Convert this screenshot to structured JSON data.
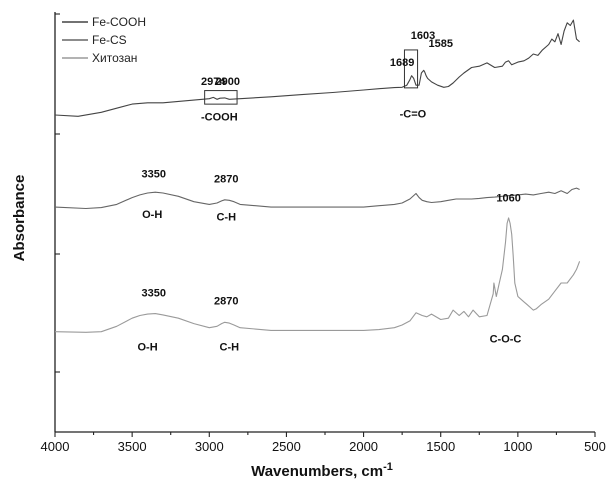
{
  "chart_data": {
    "type": "line",
    "xlabel": "Wavenumbers, cm",
    "xlabel_superscript": "-1",
    "ylabel": "Absorbance",
    "xlim": [
      4000,
      500
    ],
    "xticks": [
      "4000",
      "3500",
      "3000",
      "2500",
      "2000",
      "1500",
      "1000",
      "500"
    ],
    "yticks_labeled": false,
    "legend": "top-left",
    "grid": false,
    "series": [
      {
        "name": "Fe-COOH",
        "color": "#444444",
        "x": [
          4000,
          3850,
          3700,
          3600,
          3500,
          3400,
          3300,
          3200,
          3100,
          3000,
          2974,
          2950,
          2930,
          2900,
          2870,
          2800,
          2600,
          2400,
          2200,
          2000,
          1900,
          1800,
          1750,
          1720,
          1700,
          1689,
          1675,
          1660,
          1640,
          1625,
          1610,
          1603,
          1595,
          1585,
          1560,
          1520,
          1480,
          1450,
          1420,
          1380,
          1350,
          1300,
          1250,
          1200,
          1150,
          1100,
          1080,
          1060,
          1040,
          1000,
          960,
          930,
          900,
          870,
          840,
          800,
          780,
          760,
          740,
          720,
          700,
          680,
          660,
          640,
          620,
          600
        ],
        "y": [
          0.82,
          0.815,
          0.83,
          0.845,
          0.86,
          0.865,
          0.865,
          0.87,
          0.875,
          0.88,
          0.885,
          0.878,
          0.882,
          0.883,
          0.878,
          0.88,
          0.887,
          0.895,
          0.903,
          0.912,
          0.917,
          0.921,
          0.922,
          0.93,
          0.95,
          0.965,
          0.955,
          0.93,
          0.93,
          0.975,
          0.985,
          0.978,
          0.965,
          0.955,
          0.942,
          0.93,
          0.922,
          0.925,
          0.938,
          0.96,
          0.975,
          0.995,
          1.0,
          1.012,
          0.995,
          1.0,
          1.015,
          1.02,
          1.005,
          1.015,
          1.02,
          1.03,
          1.045,
          1.04,
          1.06,
          1.08,
          1.1,
          1.09,
          1.12,
          1.08,
          1.13,
          1.16,
          1.15,
          1.17,
          1.1,
          1.09
        ]
      },
      {
        "name": "Fe-CS",
        "color": "#666666",
        "x": [
          4000,
          3800,
          3700,
          3600,
          3500,
          3450,
          3400,
          3350,
          3300,
          3200,
          3100,
          3000,
          2950,
          2920,
          2900,
          2870,
          2840,
          2800,
          2600,
          2400,
          2200,
          2000,
          1900,
          1800,
          1750,
          1700,
          1660,
          1640,
          1620,
          1590,
          1560,
          1500,
          1450,
          1400,
          1350,
          1300,
          1250,
          1200,
          1150,
          1100,
          1060,
          1000,
          950,
          900,
          850,
          800,
          760,
          720,
          680,
          650,
          620,
          600
        ],
        "y": [
          0.48,
          0.475,
          0.478,
          0.49,
          0.515,
          0.525,
          0.532,
          0.535,
          0.532,
          0.52,
          0.5,
          0.49,
          0.495,
          0.503,
          0.507,
          0.505,
          0.5,
          0.49,
          0.48,
          0.48,
          0.48,
          0.48,
          0.485,
          0.49,
          0.495,
          0.51,
          0.53,
          0.515,
          0.505,
          0.5,
          0.497,
          0.5,
          0.505,
          0.51,
          0.51,
          0.51,
          0.512,
          0.515,
          0.517,
          0.52,
          0.522,
          0.525,
          0.528,
          0.525,
          0.53,
          0.535,
          0.53,
          0.54,
          0.53,
          0.545,
          0.55,
          0.545
        ]
      },
      {
        "name": "Хитозан",
        "color": "#9a9a9a",
        "x": [
          4000,
          3800,
          3700,
          3600,
          3500,
          3450,
          3400,
          3350,
          3300,
          3200,
          3100,
          3000,
          2950,
          2920,
          2900,
          2870,
          2840,
          2800,
          2600,
          2400,
          2200,
          2000,
          1900,
          1800,
          1750,
          1700,
          1660,
          1640,
          1620,
          1590,
          1560,
          1500,
          1450,
          1420,
          1380,
          1350,
          1320,
          1290,
          1250,
          1200,
          1180,
          1160,
          1155,
          1140,
          1120,
          1100,
          1080,
          1070,
          1060,
          1050,
          1040,
          1030,
          1020,
          1000,
          980,
          960,
          940,
          900,
          880,
          850,
          800,
          760,
          720,
          680,
          640,
          620,
          600
        ],
        "y": [
          0.02,
          0.018,
          0.02,
          0.04,
          0.07,
          0.08,
          0.085,
          0.087,
          0.082,
          0.07,
          0.05,
          0.035,
          0.04,
          0.05,
          0.055,
          0.052,
          0.045,
          0.035,
          0.025,
          0.025,
          0.025,
          0.025,
          0.028,
          0.035,
          0.045,
          0.06,
          0.09,
          0.085,
          0.08,
          0.075,
          0.085,
          0.065,
          0.07,
          0.1,
          0.08,
          0.095,
          0.075,
          0.1,
          0.075,
          0.08,
          0.12,
          0.16,
          0.2,
          0.15,
          0.2,
          0.25,
          0.35,
          0.42,
          0.44,
          0.42,
          0.38,
          0.3,
          0.2,
          0.15,
          0.14,
          0.13,
          0.12,
          0.1,
          0.105,
          0.12,
          0.14,
          0.17,
          0.2,
          0.2,
          0.23,
          0.25,
          0.28
        ]
      }
    ],
    "annotations": [
      {
        "text": "2974",
        "x": 2974,
        "y": 0.93,
        "anchor": "middle"
      },
      {
        "text": "2900",
        "x": 2880,
        "y": 0.93,
        "anchor": "middle"
      },
      {
        "text": "-COOH",
        "x": 2935,
        "y": 0.8,
        "anchor": "middle"
      },
      {
        "text": "1689",
        "x": 1750,
        "y": 1.0,
        "anchor": "middle"
      },
      {
        "text": "1603",
        "x": 1615,
        "y": 1.1,
        "anchor": "middle"
      },
      {
        "text": "1585",
        "x": 1500,
        "y": 1.07,
        "anchor": "middle"
      },
      {
        "text": "-C=O",
        "x": 1680,
        "y": 0.81,
        "anchor": "middle"
      },
      {
        "text": "3350",
        "x": 3360,
        "y": 0.59,
        "anchor": "middle"
      },
      {
        "text": "O-H",
        "x": 3370,
        "y": 0.44,
        "anchor": "middle"
      },
      {
        "text": "2870",
        "x": 2890,
        "y": 0.57,
        "anchor": "middle"
      },
      {
        "text": "C-H",
        "x": 2890,
        "y": 0.43,
        "anchor": "middle"
      },
      {
        "text": "1060",
        "x": 1060,
        "y": 0.5,
        "anchor": "middle"
      },
      {
        "text": "3350",
        "x": 3360,
        "y": 0.15,
        "anchor": "middle"
      },
      {
        "text": "O-H",
        "x": 3400,
        "y": -0.05,
        "anchor": "middle"
      },
      {
        "text": "2870",
        "x": 2890,
        "y": 0.12,
        "anchor": "middle"
      },
      {
        "text": "C-H",
        "x": 2870,
        "y": -0.05,
        "anchor": "middle"
      },
      {
        "text": "C-O-C",
        "x": 1080,
        "y": -0.02,
        "anchor": "middle"
      }
    ],
    "boxes": [
      {
        "x1": 3030,
        "x2": 2820,
        "y1": 0.86,
        "y2": 0.91
      },
      {
        "x1": 1735,
        "x2": 1650,
        "y1": 0.92,
        "y2": 1.06
      }
    ]
  }
}
